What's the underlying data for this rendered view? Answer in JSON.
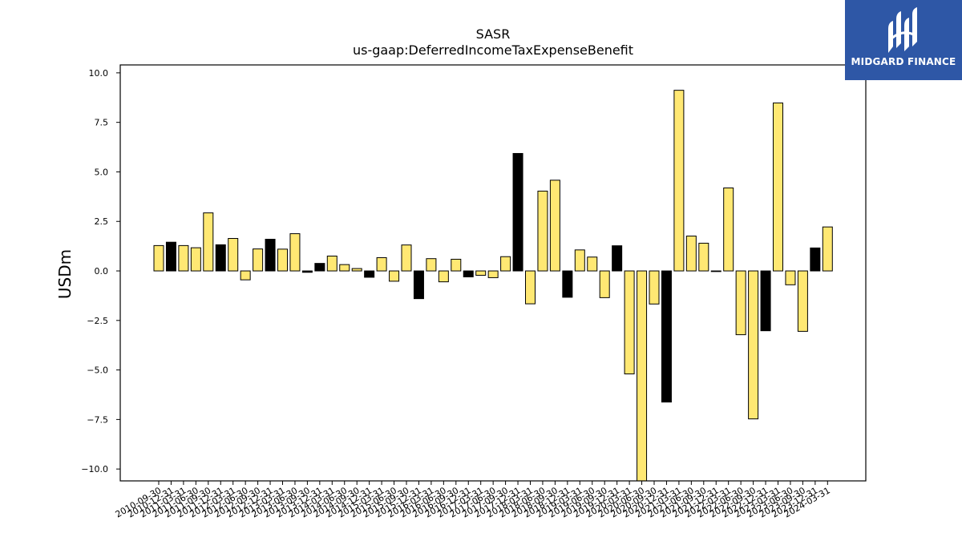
{
  "chart_data": {
    "type": "bar",
    "title": "SASR",
    "subtitle": "us-gaap:DeferredIncomeTaxExpenseBenefit",
    "xlabel": "",
    "ylabel": "USDm",
    "ylim": [
      -10.6,
      10.4
    ],
    "yticks": [
      -10.0,
      -7.5,
      -5.0,
      -2.5,
      0.0,
      2.5,
      5.0,
      7.5,
      10.0
    ],
    "ytick_labels": [
      "−10.0",
      "−7.5",
      "−5.0",
      "−2.5",
      "0.0",
      "2.5",
      "5.0",
      "7.5",
      "10.0"
    ],
    "grid": false,
    "colors": {
      "positive_fill": "#ffe873",
      "highlight_fill": "#000000",
      "edge": "#000000"
    },
    "categories": [
      "2010-09-30",
      "2010-12-31",
      "2011-03-31",
      "2011-06-30",
      "2011-09-30",
      "2011-12-31",
      "2012-03-31",
      "2012-06-30",
      "2012-09-30",
      "2012-12-31",
      "2013-03-31",
      "2013-06-30",
      "2013-09-30",
      "2013-12-31",
      "2014-03-31",
      "2014-06-30",
      "2014-09-30",
      "2014-12-31",
      "2015-03-31",
      "2015-06-30",
      "2015-09-30",
      "2015-12-31",
      "2016-03-31",
      "2016-06-30",
      "2016-09-30",
      "2016-12-31",
      "2017-03-31",
      "2017-06-30",
      "2017-09-30",
      "2017-12-31",
      "2018-03-31",
      "2018-06-30",
      "2018-09-30",
      "2018-12-31",
      "2019-03-31",
      "2019-06-30",
      "2019-09-30",
      "2019-12-31",
      "2020-03-31",
      "2020-06-30",
      "2020-09-30",
      "2020-12-31",
      "2021-03-31",
      "2021-06-30",
      "2021-09-30",
      "2021-12-31",
      "2022-03-31",
      "2022-06-30",
      "2022-09-30",
      "2022-12-31",
      "2023-03-31",
      "2023-06-30",
      "2023-09-30",
      "2023-12-31",
      "2024-03-31"
    ],
    "values": [
      1.28,
      1.45,
      1.28,
      1.17,
      2.93,
      1.32,
      1.64,
      -0.45,
      1.11,
      1.6,
      1.1,
      1.88,
      -0.07,
      0.38,
      0.75,
      0.32,
      0.12,
      -0.32,
      0.67,
      -0.52,
      1.31,
      -1.4,
      0.62,
      -0.55,
      0.59,
      -0.3,
      -0.22,
      -0.34,
      0.72,
      5.93,
      -1.66,
      4.03,
      4.58,
      -1.33,
      1.06,
      0.7,
      -1.35,
      1.27,
      -5.2,
      -10.6,
      -1.67,
      -6.62,
      9.12,
      1.76,
      1.4,
      -0.02,
      4.19,
      -3.22,
      -7.47,
      -3.02,
      8.48,
      -0.7,
      -3.05,
      1.16,
      2.22
    ],
    "highlight": [
      false,
      true,
      false,
      false,
      false,
      true,
      false,
      false,
      false,
      true,
      false,
      false,
      true,
      true,
      false,
      false,
      false,
      true,
      false,
      false,
      false,
      true,
      false,
      false,
      false,
      true,
      false,
      false,
      false,
      true,
      false,
      false,
      false,
      true,
      false,
      false,
      false,
      true,
      false,
      false,
      false,
      true,
      false,
      false,
      false,
      true,
      false,
      false,
      false,
      true,
      false,
      false,
      false,
      true,
      false
    ]
  },
  "logo": {
    "text": "MIDGARD FINANCE",
    "icon": "midgard-logo-icon",
    "bg_color": "#2e57a6"
  }
}
